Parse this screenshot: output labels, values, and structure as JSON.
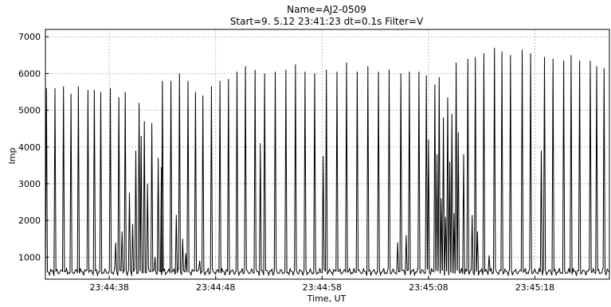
{
  "chart_data": {
    "type": "line",
    "title": "Name=AJ2-0509",
    "subtitle": "Start=9. 5.12 23:41:23  dt=0.1s  Filter=V",
    "xlabel": "Time, UT",
    "ylabel": "Imp",
    "xlim": [
      0,
      53.0
    ],
    "ylim": [
      400,
      7200
    ],
    "x_ticks": [
      {
        "value": 6.0,
        "label": "23:44:38"
      },
      {
        "value": 16.0,
        "label": "23:44:48"
      },
      {
        "value": 26.0,
        "label": "23:44:58"
      },
      {
        "value": 36.0,
        "label": "23:45:08"
      },
      {
        "value": 46.0,
        "label": "23:45:18"
      }
    ],
    "y_ticks": [
      1000,
      2000,
      3000,
      4000,
      5000,
      6000,
      7000
    ],
    "grid": true,
    "baseline": 600,
    "series_color": "#000000",
    "pulses": [
      {
        "t": 0.1,
        "peak": 5600
      },
      {
        "t": 0.9,
        "peak": 5600
      },
      {
        "t": 1.7,
        "peak": 5650
      },
      {
        "t": 2.4,
        "peak": 5450
      },
      {
        "t": 3.1,
        "peak": 5650
      },
      {
        "t": 4.0,
        "peak": 5550
      },
      {
        "t": 4.6,
        "peak": 5550
      },
      {
        "t": 5.2,
        "peak": 5500
      },
      {
        "t": 6.1,
        "peak": 5600
      },
      {
        "t": 6.6,
        "peak": 1400
      },
      {
        "t": 6.9,
        "peak": 5350
      },
      {
        "t": 7.2,
        "peak": 1700
      },
      {
        "t": 7.5,
        "peak": 5500
      },
      {
        "t": 7.9,
        "peak": 2750
      },
      {
        "t": 8.2,
        "peak": 1900
      },
      {
        "t": 8.5,
        "peak": 3900
      },
      {
        "t": 8.8,
        "peak": 5200
      },
      {
        "t": 9.0,
        "peak": 4300
      },
      {
        "t": 9.3,
        "peak": 4700
      },
      {
        "t": 9.6,
        "peak": 3000
      },
      {
        "t": 10.0,
        "peak": 4650
      },
      {
        "t": 10.3,
        "peak": 1000
      },
      {
        "t": 10.6,
        "peak": 3700
      },
      {
        "t": 10.9,
        "peak": 3450
      },
      {
        "t": 11.0,
        "peak": 5800
      },
      {
        "t": 11.8,
        "peak": 5800
      },
      {
        "t": 12.3,
        "peak": 2150
      },
      {
        "t": 12.6,
        "peak": 6000
      },
      {
        "t": 12.9,
        "peak": 1500
      },
      {
        "t": 13.2,
        "peak": 1100
      },
      {
        "t": 13.4,
        "peak": 5800
      },
      {
        "t": 14.1,
        "peak": 5500
      },
      {
        "t": 14.5,
        "peak": 900
      },
      {
        "t": 14.8,
        "peak": 5400
      },
      {
        "t": 15.6,
        "peak": 5650
      },
      {
        "t": 16.4,
        "peak": 5800
      },
      {
        "t": 17.2,
        "peak": 5850
      },
      {
        "t": 18.0,
        "peak": 6050
      },
      {
        "t": 18.8,
        "peak": 6200
      },
      {
        "t": 19.7,
        "peak": 6100
      },
      {
        "t": 20.2,
        "peak": 4100
      },
      {
        "t": 20.6,
        "peak": 6000
      },
      {
        "t": 21.6,
        "peak": 6050
      },
      {
        "t": 22.6,
        "peak": 6100
      },
      {
        "t": 23.5,
        "peak": 6250
      },
      {
        "t": 24.4,
        "peak": 6050
      },
      {
        "t": 25.3,
        "peak": 6000
      },
      {
        "t": 26.1,
        "peak": 3750
      },
      {
        "t": 26.4,
        "peak": 6100
      },
      {
        "t": 27.4,
        "peak": 6050
      },
      {
        "t": 28.3,
        "peak": 6300
      },
      {
        "t": 29.3,
        "peak": 6050
      },
      {
        "t": 30.3,
        "peak": 6200
      },
      {
        "t": 31.3,
        "peak": 6050
      },
      {
        "t": 32.3,
        "peak": 6100
      },
      {
        "t": 33.1,
        "peak": 1400
      },
      {
        "t": 33.4,
        "peak": 6000
      },
      {
        "t": 33.9,
        "peak": 1600
      },
      {
        "t": 34.2,
        "peak": 6050
      },
      {
        "t": 35.1,
        "peak": 6050
      },
      {
        "t": 35.8,
        "peak": 5950
      },
      {
        "t": 36.0,
        "peak": 4200
      },
      {
        "t": 36.6,
        "peak": 5700
      },
      {
        "t": 36.8,
        "peak": 3800
      },
      {
        "t": 37.0,
        "peak": 5900
      },
      {
        "t": 37.2,
        "peak": 2600
      },
      {
        "t": 37.4,
        "peak": 4800
      },
      {
        "t": 37.6,
        "peak": 2100
      },
      {
        "t": 37.8,
        "peak": 5350
      },
      {
        "t": 38.0,
        "peak": 3600
      },
      {
        "t": 38.2,
        "peak": 4900
      },
      {
        "t": 38.4,
        "peak": 2200
      },
      {
        "t": 38.6,
        "peak": 6300
      },
      {
        "t": 38.8,
        "peak": 4400
      },
      {
        "t": 39.3,
        "peak": 3800
      },
      {
        "t": 39.7,
        "peak": 6400
      },
      {
        "t": 40.1,
        "peak": 2150
      },
      {
        "t": 40.4,
        "peak": 6450
      },
      {
        "t": 40.6,
        "peak": 1700
      },
      {
        "t": 41.2,
        "peak": 6550
      },
      {
        "t": 41.7,
        "peak": 1050
      },
      {
        "t": 42.2,
        "peak": 6700
      },
      {
        "t": 42.9,
        "peak": 6600
      },
      {
        "t": 43.7,
        "peak": 6500
      },
      {
        "t": 44.8,
        "peak": 6650
      },
      {
        "t": 45.6,
        "peak": 6550
      },
      {
        "t": 46.6,
        "peak": 3900
      },
      {
        "t": 46.9,
        "peak": 6450
      },
      {
        "t": 47.7,
        "peak": 6400
      },
      {
        "t": 48.7,
        "peak": 6350
      },
      {
        "t": 49.4,
        "peak": 6500
      },
      {
        "t": 50.2,
        "peak": 6350
      },
      {
        "t": 51.2,
        "peak": 6350
      },
      {
        "t": 51.8,
        "peak": 6200
      },
      {
        "t": 52.5,
        "peak": 6150
      }
    ]
  }
}
